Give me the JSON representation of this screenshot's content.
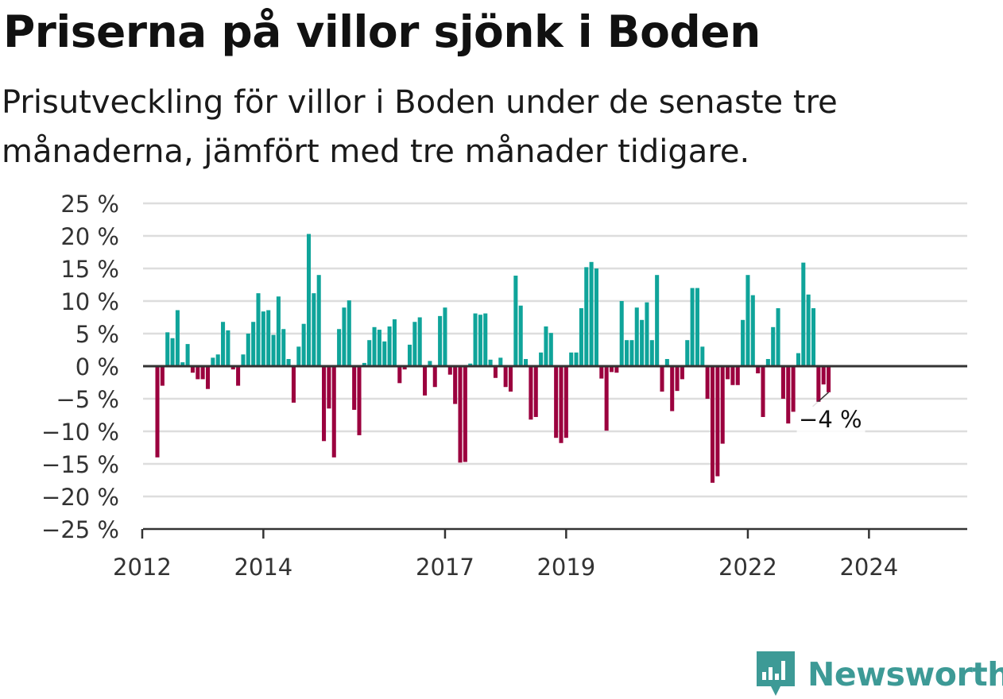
{
  "title": "Priserna på villor sjönk i Boden",
  "subtitle": "Prisutveckling för villor i Boden under de senaste tre månaderna, jämfört med tre månader tidigare.",
  "brand": "Newsworthy",
  "colors": {
    "positive": "#0fa49a",
    "negative": "#9b003e",
    "grid": "#dddddd",
    "axis": "#333333"
  },
  "chart_data": {
    "type": "bar",
    "ylim": [
      -25,
      25
    ],
    "y_ticks": [
      25,
      20,
      15,
      10,
      5,
      0,
      -5,
      -10,
      -15,
      -20,
      -25
    ],
    "y_tick_labels": [
      "25 %",
      "20 %",
      "15 %",
      "10 %",
      "5 %",
      "0 %",
      "−5 %",
      "−10 %",
      "−15 %",
      "−20 %",
      "−25 %"
    ],
    "x_ticks": [
      2012,
      2014,
      2017,
      2019,
      2022,
      2024
    ],
    "x_tick_labels": [
      "2012",
      "2014",
      "2017",
      "2019",
      "2022",
      "2024"
    ],
    "xlim": [
      2011.83,
      2025.33
    ],
    "start_year": 2012,
    "start_month": 4,
    "values": [
      -14,
      -3,
      5.2,
      4.3,
      8.6,
      0.6,
      3.4,
      -1,
      -2,
      -2,
      -3.5,
      1.3,
      1.8,
      6.8,
      5.5,
      -0.5,
      -3,
      1.8,
      5,
      6.8,
      11.2,
      8.4,
      8.6,
      4.8,
      10.7,
      5.7,
      1.1,
      -5.6,
      3,
      6.5,
      20.3,
      11.2,
      14,
      -11.5,
      -6.5,
      -14,
      5.7,
      9,
      10.1,
      -6.7,
      -10.6,
      0.5,
      4,
      6,
      5.6,
      3.8,
      6.1,
      7.2,
      -2.6,
      -0.5,
      3.3,
      6.8,
      7.5,
      -4.5,
      0.8,
      -3.2,
      7.7,
      9,
      -1.3,
      -5.8,
      -14.8,
      -14.7,
      0.4,
      8.1,
      7.9,
      8.1,
      1,
      -1.8,
      1.3,
      -3.2,
      -3.9,
      13.9,
      9.3,
      1.1,
      -8.2,
      -7.8,
      2.1,
      6.1,
      5.1,
      -11,
      -11.8,
      -11,
      2.1,
      2.1,
      8.9,
      15.2,
      16,
      15,
      -1.9,
      -9.9,
      -0.9,
      -1,
      10,
      4,
      4,
      9,
      7.1,
      9.8,
      4,
      14,
      -3.9,
      1.1,
      -6.9,
      -3.8,
      -2,
      4,
      12,
      12,
      3,
      -5,
      -17.9,
      -16.9,
      -11.9,
      -2,
      -2.9,
      -2.9,
      7.1,
      14,
      10.9,
      -1.1,
      -7.8,
      1.1,
      6,
      8.9,
      -5,
      -8.8,
      -7,
      2,
      15.9,
      11,
      8.9,
      -5.5,
      -2.8,
      -4
    ],
    "annotation": {
      "text": "−4 %",
      "value": -4
    }
  }
}
